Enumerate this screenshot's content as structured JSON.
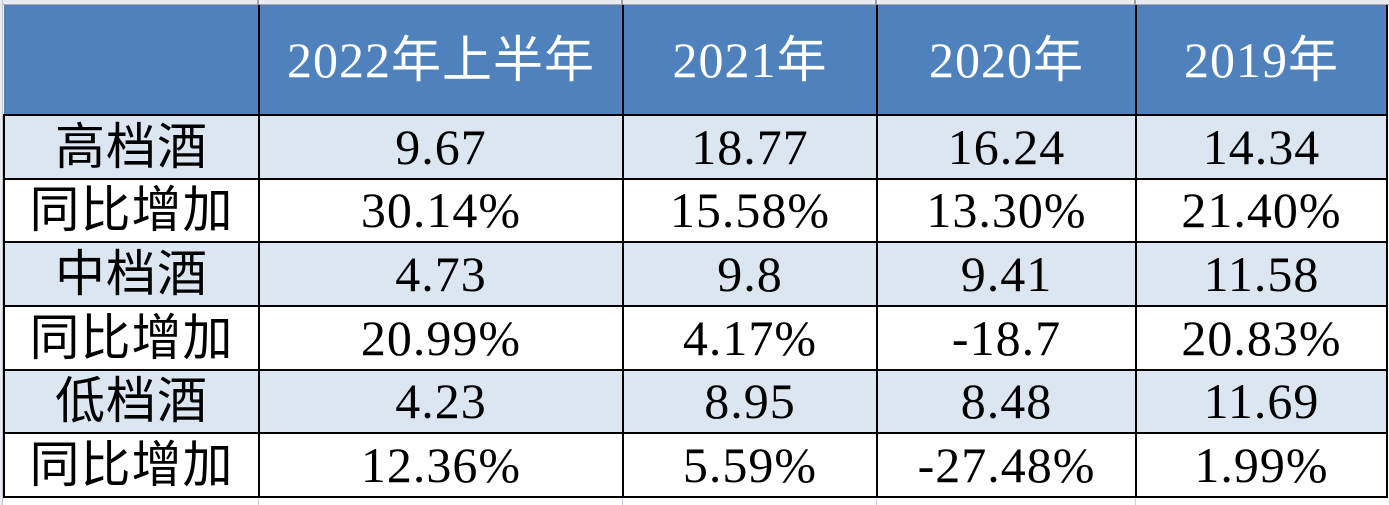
{
  "chart_data": {
    "type": "table",
    "columns": [
      "",
      "2022年上半年",
      "2021年",
      "2020年",
      "2019年"
    ],
    "rows": [
      {
        "label": "高档酒",
        "values": [
          "9.67",
          "18.77",
          "16.24",
          "14.34"
        ]
      },
      {
        "label": "同比增加",
        "values": [
          "30.14%",
          "15.58%",
          "13.30%",
          "21.40%"
        ]
      },
      {
        "label": "中档酒",
        "values": [
          "4.73",
          "9.8",
          "9.41",
          "11.58"
        ]
      },
      {
        "label": "同比增加",
        "values": [
          "20.99%",
          "4.17%",
          "-18.7",
          "20.83%"
        ]
      },
      {
        "label": "低档酒",
        "values": [
          "4.23",
          "8.95",
          "8.48",
          "11.69"
        ]
      },
      {
        "label": "同比增加",
        "values": [
          "12.36%",
          "5.59%",
          "-27.48%",
          "1.99%"
        ]
      }
    ],
    "layout_hints": {
      "header_row": true,
      "banded_rows": true,
      "grid": "black solid borders"
    }
  },
  "colors": {
    "header_bg": "#4F81BD",
    "header_text": "#FFFFFF",
    "band_bg": "#DCE6F1",
    "plain_bg": "#FFFFFF",
    "body_text": "#000000",
    "border": "#000000",
    "margin_bg": "#ECEBF1",
    "grid_tick": "#9EA0A8",
    "bottom_grid": "#C9CFE2"
  }
}
